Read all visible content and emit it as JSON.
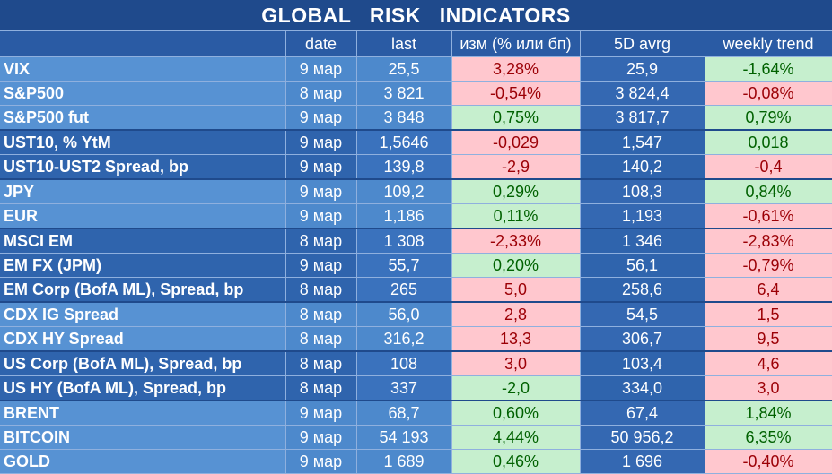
{
  "title": "GLOBAL   RISK   INDICATORS",
  "headers": {
    "name": "",
    "date": "date",
    "last": "last",
    "change": "изм (% или бп)",
    "avg5d": "5D avrg",
    "weekly": "weekly trend"
  },
  "colors": {
    "positive_bg": "#c6efce",
    "positive_text": "#006100",
    "negative_bg": "#ffc7ce",
    "negative_text": "#9c0006",
    "header_bg": "#1f4a8c"
  },
  "rows": [
    {
      "name": "VIX",
      "date": "9 мар",
      "last": "25,5",
      "change": "3,28%",
      "change_sign": "neg",
      "avg5d": "25,9",
      "weekly": "-1,64%",
      "weekly_sign": "pos",
      "group": "light"
    },
    {
      "name": "S&P500",
      "date": "8 мар",
      "last": "3 821",
      "change": "-0,54%",
      "change_sign": "neg",
      "avg5d": "3 824,4",
      "weekly": "-0,08%",
      "weekly_sign": "neg",
      "group": "light"
    },
    {
      "name": "S&P500 fut",
      "date": "9 мар",
      "last": "3 848",
      "change": "0,75%",
      "change_sign": "pos",
      "avg5d": "3 817,7",
      "weekly": "0,79%",
      "weekly_sign": "pos",
      "group": "light",
      "end": true
    },
    {
      "name": "UST10, % YtM",
      "date": "9 мар",
      "last": "1,5646",
      "change": "-0,029",
      "change_sign": "neg",
      "avg5d": "1,547",
      "weekly": "0,018",
      "weekly_sign": "pos",
      "group": "dark"
    },
    {
      "name": "UST10-UST2 Spread, bp",
      "date": "9 мар",
      "last": "139,8",
      "change": "-2,9",
      "change_sign": "neg",
      "avg5d": "140,2",
      "weekly": "-0,4",
      "weekly_sign": "neg",
      "group": "dark",
      "end": true
    },
    {
      "name": "JPY",
      "date": "9 мар",
      "last": "109,2",
      "change": "0,29%",
      "change_sign": "pos",
      "avg5d": "108,3",
      "weekly": "0,84%",
      "weekly_sign": "pos",
      "group": "light"
    },
    {
      "name": "EUR",
      "date": "9 мар",
      "last": "1,186",
      "change": "0,11%",
      "change_sign": "pos",
      "avg5d": "1,193",
      "weekly": "-0,61%",
      "weekly_sign": "neg",
      "group": "light",
      "end": true
    },
    {
      "name": "MSCI EM",
      "date": "8 мар",
      "last": "1 308",
      "change": "-2,33%",
      "change_sign": "neg",
      "avg5d": "1 346",
      "weekly": "-2,83%",
      "weekly_sign": "neg",
      "group": "dark"
    },
    {
      "name": "EM FX (JPM)",
      "date": "9 мар",
      "last": "55,7",
      "change": "0,20%",
      "change_sign": "pos",
      "avg5d": "56,1",
      "weekly": "-0,79%",
      "weekly_sign": "neg",
      "group": "dark"
    },
    {
      "name": "EM Corp (BofA ML), Spread, bp",
      "date": "8 мар",
      "last": "265",
      "change": "5,0",
      "change_sign": "neg",
      "avg5d": "258,6",
      "weekly": "6,4",
      "weekly_sign": "neg",
      "group": "dark",
      "end": true
    },
    {
      "name": "CDX IG Spread",
      "date": "8 мар",
      "last": "56,0",
      "change": "2,8",
      "change_sign": "neg",
      "avg5d": "54,5",
      "weekly": "1,5",
      "weekly_sign": "neg",
      "group": "light"
    },
    {
      "name": "CDX HY Spread",
      "date": "8 мар",
      "last": "316,2",
      "change": "13,3",
      "change_sign": "neg",
      "avg5d": "306,7",
      "weekly": "9,5",
      "weekly_sign": "neg",
      "group": "light",
      "end": true
    },
    {
      "name": "US Corp (BofA ML), Spread, bp",
      "date": "8 мар",
      "last": "108",
      "change": "3,0",
      "change_sign": "neg",
      "avg5d": "103,4",
      "weekly": "4,6",
      "weekly_sign": "neg",
      "group": "dark"
    },
    {
      "name": "US HY (BofA ML), Spread, bp",
      "date": "8 мар",
      "last": "337",
      "change": "-2,0",
      "change_sign": "pos",
      "avg5d": "334,0",
      "weekly": "3,0",
      "weekly_sign": "neg",
      "group": "dark",
      "end": true
    },
    {
      "name": "BRENT",
      "date": "9 мар",
      "last": "68,7",
      "change": "0,60%",
      "change_sign": "pos",
      "avg5d": "67,4",
      "weekly": "1,84%",
      "weekly_sign": "pos",
      "group": "light"
    },
    {
      "name": "BITCOIN",
      "date": "9 мар",
      "last": "54 193",
      "change": "4,44%",
      "change_sign": "pos",
      "avg5d": "50 956,2",
      "weekly": "6,35%",
      "weekly_sign": "pos",
      "group": "light"
    },
    {
      "name": "GOLD",
      "date": "9 мар",
      "last": "1 689",
      "change": "0,46%",
      "change_sign": "pos",
      "avg5d": "1 696",
      "weekly": "-0,40%",
      "weekly_sign": "neg",
      "group": "light"
    }
  ]
}
